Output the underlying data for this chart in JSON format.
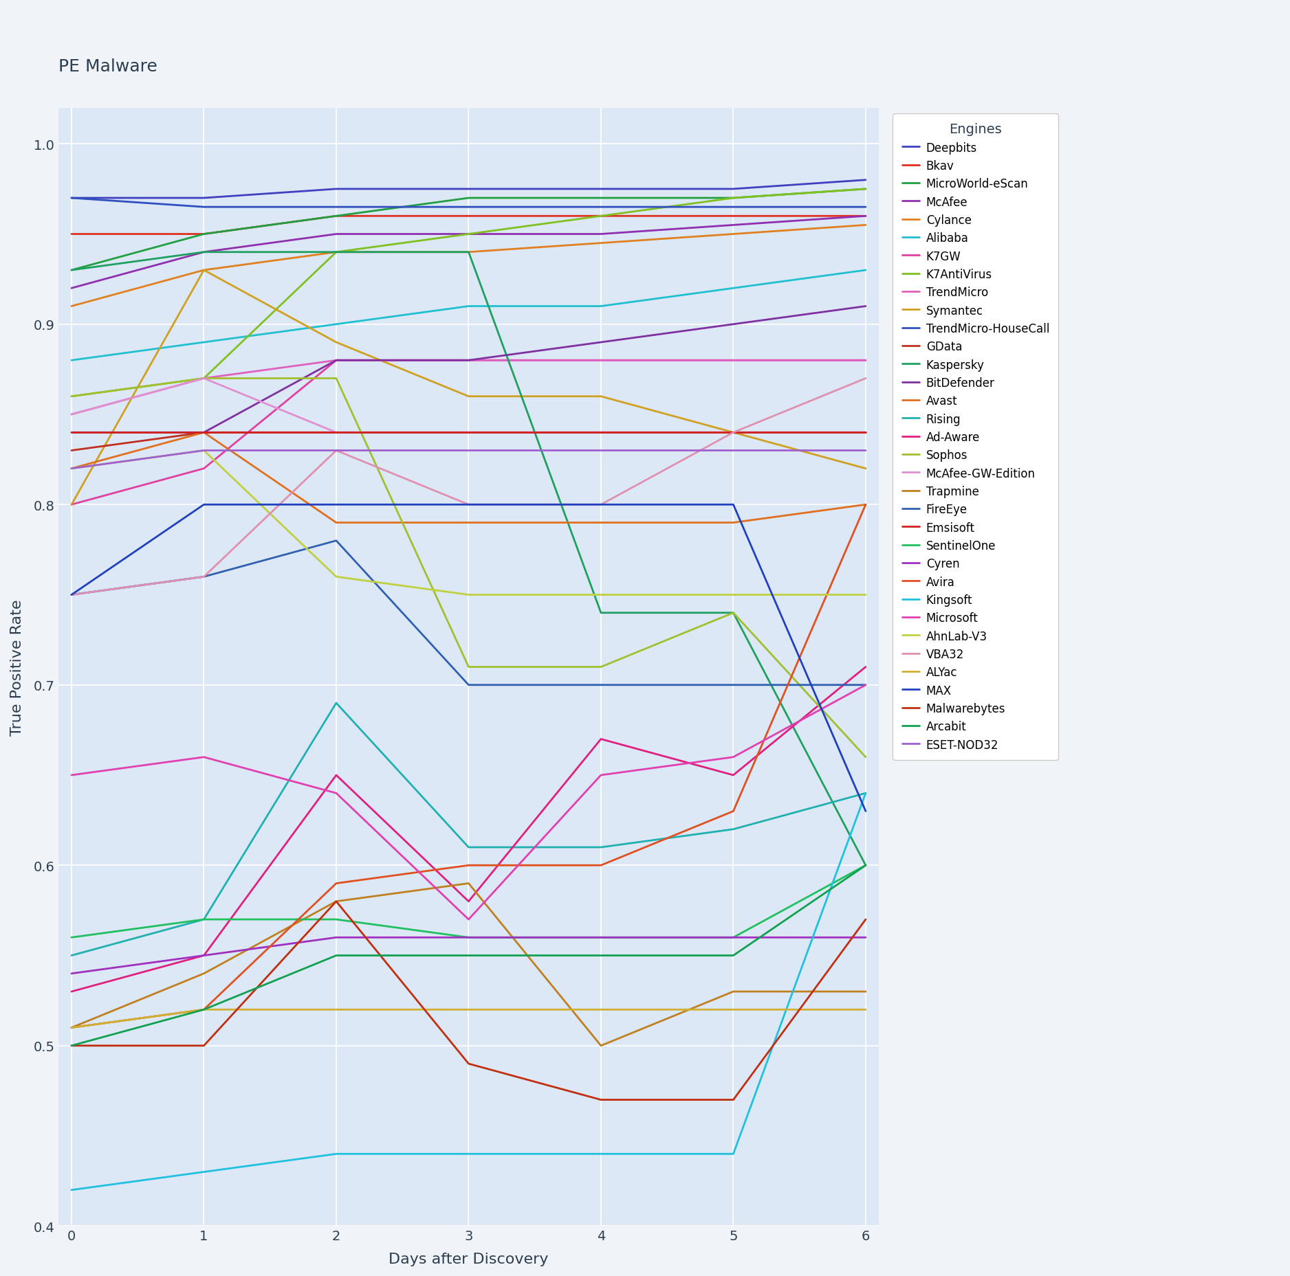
{
  "title": "PE Malware",
  "xlabel": "Days after Discovery",
  "ylabel": "True Positive Rate",
  "xlim": [
    0,
    6
  ],
  "ylim": [
    0.4,
    1.02
  ],
  "yticks": [
    0.4,
    0.5,
    0.6,
    0.7,
    0.8,
    0.9,
    1.0
  ],
  "xticks": [
    0,
    1,
    2,
    3,
    4,
    5,
    6
  ],
  "background_color": "#f0f4f8",
  "plot_bg_color": "#dce8f5",
  "engines": [
    {
      "name": "Deepbits",
      "color": "#4040c0",
      "data": [
        0.97,
        0.97,
        0.975,
        0.975,
        0.975,
        0.975,
        0.98
      ]
    },
    {
      "name": "Bkav",
      "color": "#e03020",
      "data": [
        0.95,
        0.95,
        0.96,
        0.96,
        0.96,
        0.96,
        0.96
      ]
    },
    {
      "name": "MicroWorld-eScan",
      "color": "#20a040",
      "data": [
        0.93,
        0.95,
        0.96,
        0.97,
        0.97,
        0.97,
        0.975
      ]
    },
    {
      "name": "McAfee",
      "color": "#9030b0",
      "data": [
        0.92,
        0.94,
        0.95,
        0.95,
        0.95,
        0.955,
        0.96
      ]
    },
    {
      "name": "Cylance",
      "color": "#e08020",
      "data": [
        0.91,
        0.93,
        0.94,
        0.94,
        0.945,
        0.95,
        0.955
      ]
    },
    {
      "name": "Alibaba",
      "color": "#20c0d0",
      "data": [
        0.88,
        0.89,
        0.9,
        0.91,
        0.91,
        0.92,
        0.93
      ]
    },
    {
      "name": "K7GW",
      "color": "#e040a0",
      "data": [
        0.8,
        0.82,
        0.88,
        0.88,
        0.88,
        0.88,
        0.88
      ]
    },
    {
      "name": "K7AntiVirus",
      "color": "#80c020",
      "data": [
        0.86,
        0.87,
        0.94,
        0.95,
        0.96,
        0.97,
        0.975
      ]
    },
    {
      "name": "TrendMicro",
      "color": "#e060c0",
      "data": [
        0.85,
        0.87,
        0.88,
        0.88,
        0.88,
        0.88,
        0.88
      ]
    },
    {
      "name": "Symantec",
      "color": "#d0a020",
      "data": [
        0.8,
        0.93,
        0.89,
        0.86,
        0.86,
        0.84,
        0.82
      ]
    },
    {
      "name": "TrendMicro-HouseCall",
      "color": "#3050c0",
      "data": [
        0.97,
        0.965,
        0.965,
        0.965,
        0.965,
        0.965,
        0.965
      ]
    },
    {
      "name": "GData",
      "color": "#c03020",
      "data": [
        0.83,
        0.84,
        0.84,
        0.84,
        0.84,
        0.84,
        0.84
      ]
    },
    {
      "name": "Kaspersky",
      "color": "#20a060",
      "data": [
        0.93,
        0.94,
        0.94,
        0.94,
        0.74,
        0.74,
        0.6
      ]
    },
    {
      "name": "BitDefender",
      "color": "#8030a0",
      "data": [
        0.84,
        0.84,
        0.88,
        0.88,
        0.89,
        0.9,
        0.91
      ]
    },
    {
      "name": "Avast",
      "color": "#e07020",
      "data": [
        0.82,
        0.84,
        0.79,
        0.79,
        0.79,
        0.79,
        0.8
      ]
    },
    {
      "name": "Rising",
      "color": "#20b0b0",
      "data": [
        0.55,
        0.57,
        0.69,
        0.61,
        0.61,
        0.62,
        0.64
      ]
    },
    {
      "name": "Ad-Aware",
      "color": "#e02080",
      "data": [
        0.53,
        0.55,
        0.65,
        0.58,
        0.67,
        0.65,
        0.71
      ]
    },
    {
      "name": "Sophos",
      "color": "#a0c030",
      "data": [
        0.86,
        0.87,
        0.87,
        0.71,
        0.71,
        0.74,
        0.66
      ]
    },
    {
      "name": "McAfee-GW-Edition",
      "color": "#e090d0",
      "data": [
        0.85,
        0.87,
        0.84,
        0.84,
        0.84,
        0.84,
        0.84
      ]
    },
    {
      "name": "Trapmine",
      "color": "#c08020",
      "data": [
        0.51,
        0.54,
        0.58,
        0.59,
        0.5,
        0.53,
        0.53
      ]
    },
    {
      "name": "FireEye",
      "color": "#3060b0",
      "data": [
        0.75,
        0.76,
        0.78,
        0.7,
        0.7,
        0.7,
        0.7
      ]
    },
    {
      "name": "Emsisoft",
      "color": "#d02020",
      "data": [
        0.84,
        0.84,
        0.84,
        0.84,
        0.84,
        0.84,
        0.84
      ]
    },
    {
      "name": "SentinelOne",
      "color": "#20c060",
      "data": [
        0.56,
        0.57,
        0.57,
        0.56,
        0.56,
        0.56,
        0.6
      ]
    },
    {
      "name": "Cyren",
      "color": "#a030c0",
      "data": [
        0.54,
        0.55,
        0.56,
        0.56,
        0.56,
        0.56,
        0.56
      ]
    },
    {
      "name": "Avira",
      "color": "#e05020",
      "data": [
        0.51,
        0.52,
        0.59,
        0.6,
        0.6,
        0.63,
        0.8
      ]
    },
    {
      "name": "Kingsoft",
      "color": "#20c0e0",
      "data": [
        0.42,
        0.43,
        0.44,
        0.44,
        0.44,
        0.44,
        0.64
      ]
    },
    {
      "name": "Microsoft",
      "color": "#e040b0",
      "data": [
        0.65,
        0.66,
        0.64,
        0.57,
        0.65,
        0.66,
        0.7
      ]
    },
    {
      "name": "AhnLab-V3",
      "color": "#c0d040",
      "data": [
        0.82,
        0.83,
        0.76,
        0.75,
        0.75,
        0.75,
        0.75
      ]
    },
    {
      "name": "VBA32",
      "color": "#e090b0",
      "data": [
        0.75,
        0.76,
        0.83,
        0.8,
        0.8,
        0.84,
        0.87
      ]
    },
    {
      "name": "ALYac",
      "color": "#d0b030",
      "data": [
        0.51,
        0.52,
        0.52,
        0.52,
        0.52,
        0.52,
        0.52
      ]
    },
    {
      "name": "MAX",
      "color": "#2040c0",
      "data": [
        0.75,
        0.8,
        0.8,
        0.8,
        0.8,
        0.8,
        0.63
      ]
    },
    {
      "name": "Malwarebytes",
      "color": "#c03010",
      "data": [
        0.5,
        0.5,
        0.58,
        0.49,
        0.47,
        0.47,
        0.57
      ]
    },
    {
      "name": "Arcabit",
      "color": "#10a050",
      "data": [
        0.5,
        0.52,
        0.55,
        0.55,
        0.55,
        0.55,
        0.6
      ]
    },
    {
      "name": "ESET-NOD32",
      "color": "#a060d0",
      "data": [
        0.82,
        0.83,
        0.83,
        0.83,
        0.83,
        0.83,
        0.83
      ]
    }
  ]
}
